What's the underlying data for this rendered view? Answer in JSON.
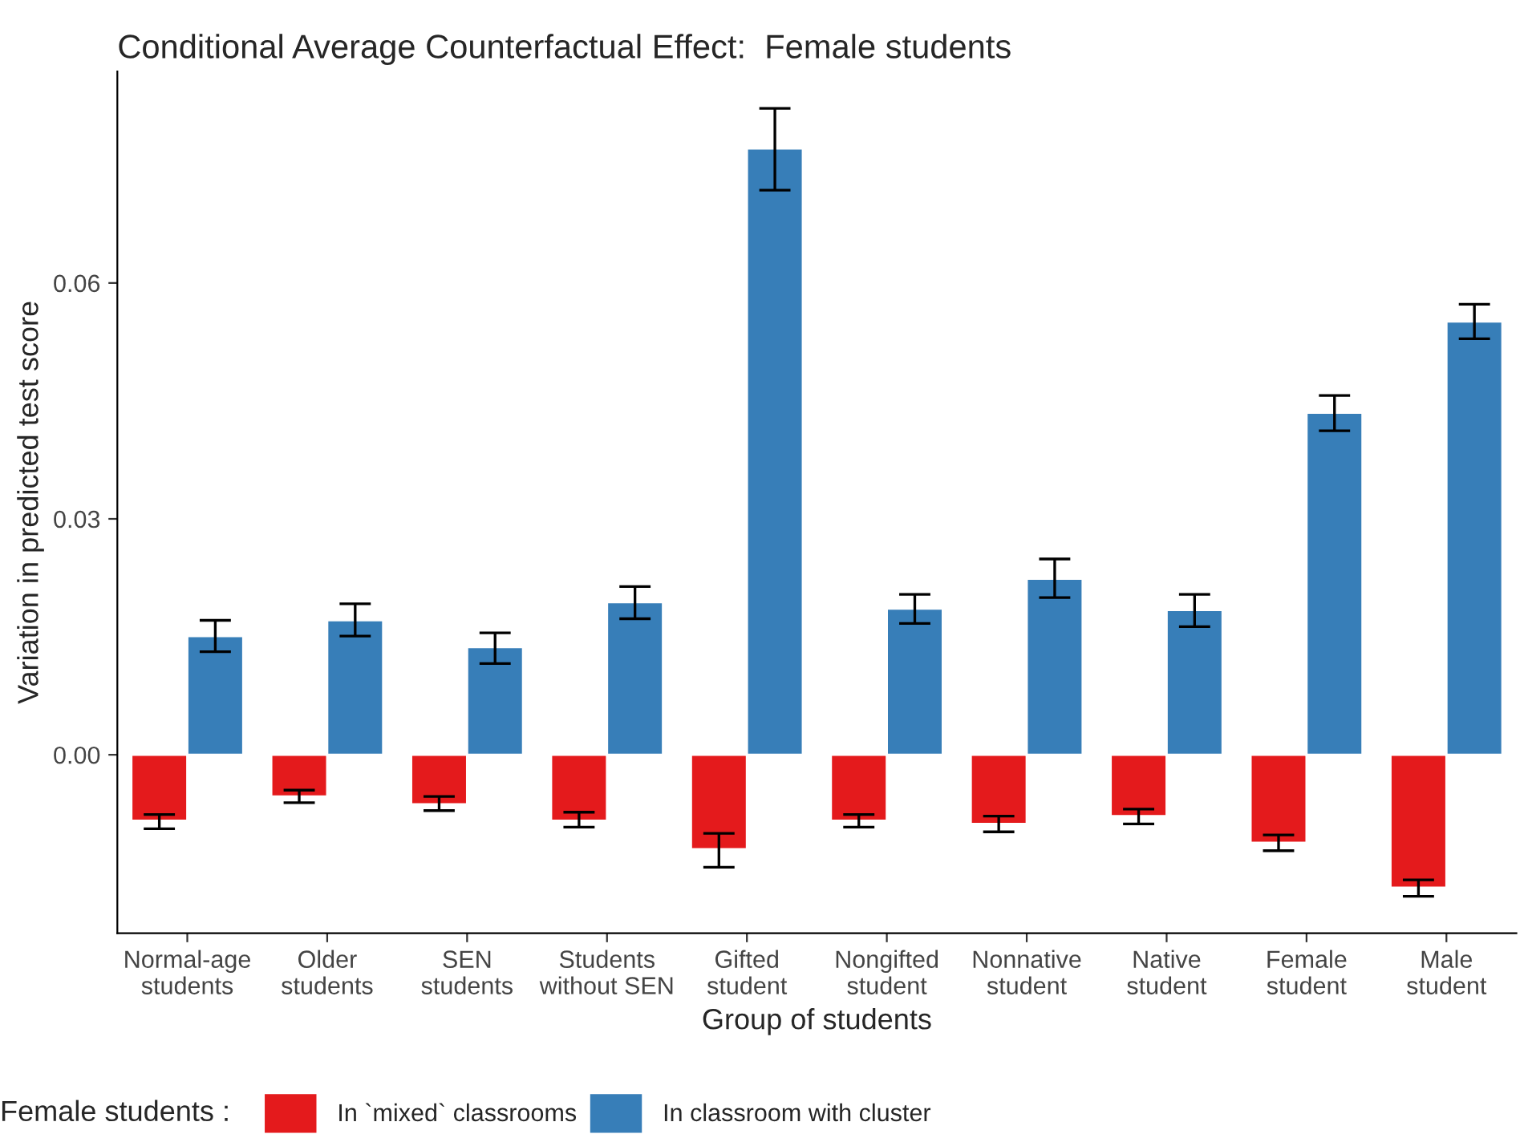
{
  "chart_data": {
    "type": "bar",
    "title": "Conditional Average Counterfactual Effect:  Female students",
    "xlabel": "Group of students",
    "ylabel": "Variation in predicted test score",
    "legend_title": "Female students :",
    "categories": [
      "Normal-age\nstudents",
      "Older\nstudents",
      "SEN\nstudents",
      "Students\nwithout SEN",
      "Gifted\nstudent",
      "Nongifted\nstudent",
      "Nonnative\nstudent",
      "Native\nstudent",
      "Female\nstudent",
      "Male\nstudent"
    ],
    "series": [
      {
        "name": "In `mixed` classrooms",
        "color": "#e41a1c",
        "values": [
          -0.0084,
          -0.0053,
          -0.0063,
          -0.0084,
          -0.012,
          -0.0084,
          -0.0088,
          -0.0078,
          -0.0112,
          -0.0169
        ],
        "errors": [
          [
            -0.0094,
            -0.0076
          ],
          [
            -0.0061,
            -0.0045
          ],
          [
            -0.0071,
            -0.0053
          ],
          [
            -0.0092,
            -0.0073
          ],
          [
            -0.0143,
            -0.01
          ],
          [
            -0.0092,
            -0.0076
          ],
          [
            -0.0098,
            -0.0078
          ],
          [
            -0.0088,
            -0.0069
          ],
          [
            -0.0122,
            -0.0102
          ],
          [
            -0.018,
            -0.0159
          ]
        ]
      },
      {
        "name": "In classroom with cluster",
        "color": "#377eb8",
        "values": [
          0.0151,
          0.0171,
          0.0137,
          0.0194,
          0.0771,
          0.0186,
          0.0224,
          0.0184,
          0.0435,
          0.0551
        ],
        "errors": [
          [
            0.0131,
            0.0171
          ],
          [
            0.0151,
            0.0192
          ],
          [
            0.0116,
            0.0155
          ],
          [
            0.0173,
            0.0214
          ],
          [
            0.0718,
            0.0822
          ],
          [
            0.0167,
            0.0204
          ],
          [
            0.02,
            0.0249
          ],
          [
            0.0163,
            0.0204
          ],
          [
            0.0412,
            0.0457
          ],
          [
            0.0529,
            0.0573
          ]
        ]
      }
    ],
    "ylim": [
      -0.0227,
      0.0869
    ],
    "yticks": [
      {
        "value": 0,
        "label": "0.00"
      },
      {
        "value": 0.03,
        "label": "0.03"
      },
      {
        "value": 0.06,
        "label": "0.06"
      }
    ],
    "grid": false,
    "legend": "bottom"
  }
}
